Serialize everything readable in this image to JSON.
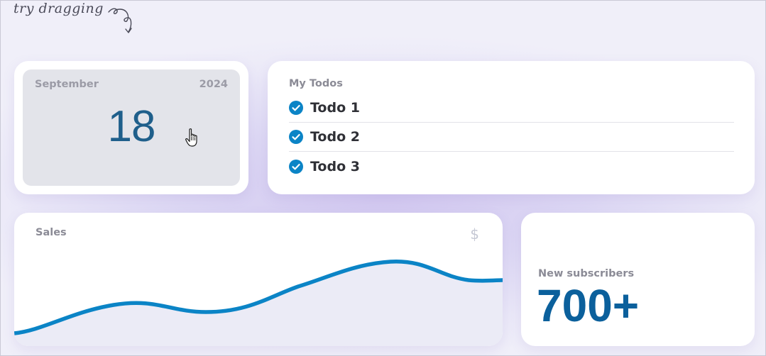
{
  "hint": {
    "text": "try dragging"
  },
  "calendar": {
    "month": "September",
    "year": "2024",
    "day": "18"
  },
  "todos": {
    "title": "My Todos",
    "items": [
      {
        "label": "Todo 1",
        "checked": true
      },
      {
        "label": "Todo 2",
        "checked": true
      },
      {
        "label": "Todo 3",
        "checked": true
      }
    ]
  },
  "sales": {
    "title": "Sales",
    "currency_symbol": "$"
  },
  "subscribers": {
    "label": "New subscribers",
    "value": "700+"
  },
  "colors": {
    "accent": "#0b84c6",
    "day_text": "#1f5f8b",
    "subscribers_text": "#0b609c"
  },
  "icons": [
    "curly-arrow-icon",
    "hand-pointer-icon",
    "check-circle-icon",
    "dollar-icon"
  ]
}
